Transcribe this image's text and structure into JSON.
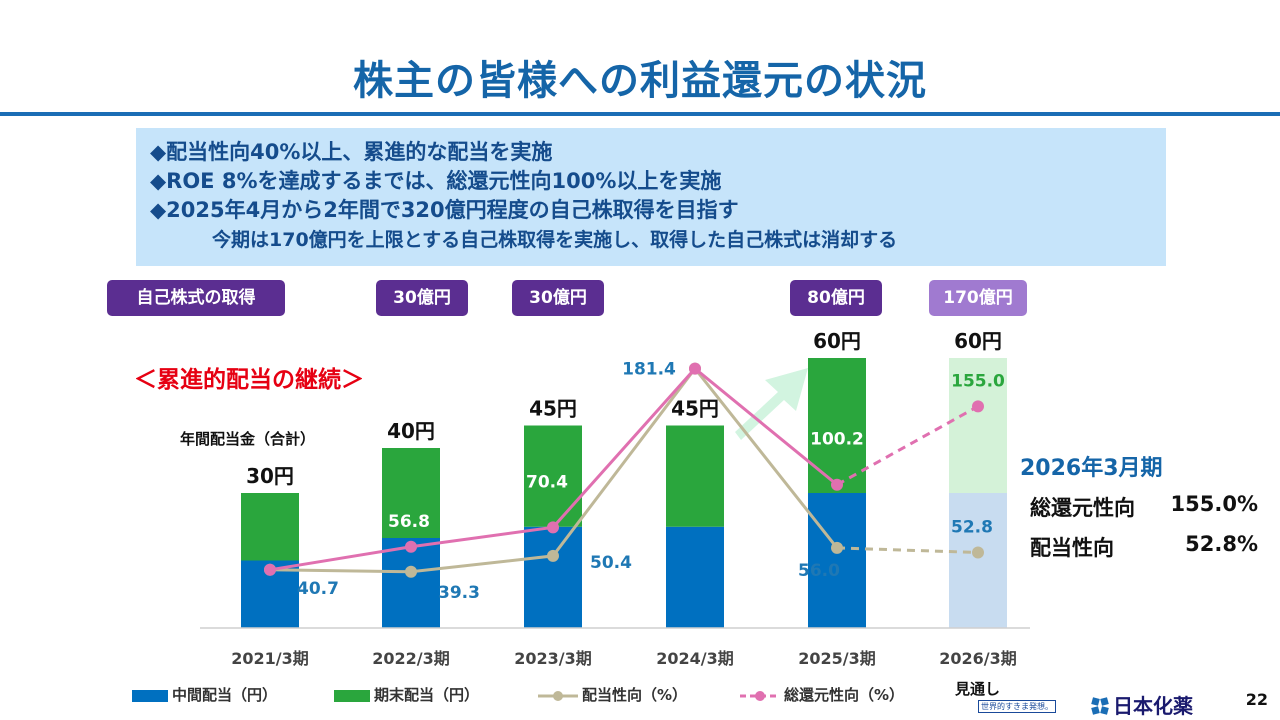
{
  "title": "株主の皆様への利益還元の状況",
  "summary": {
    "line1": "◆配当性向40%以上、累進的な配当を実施",
    "line2": "◆ROE 8%を達成するまでは、総還元性向100%以上を実施",
    "line3": "◆2025年4月から2年間で320億円程度の自己株取得を目指す",
    "line4": "今期は170億円を上限とする自己株取得を実施し、取得した自己株式は消却する"
  },
  "buyback_heading": "自己株式の取得",
  "buybacks": [
    "30億円",
    "30億円",
    "80億円",
    "170億円"
  ],
  "progressive_heading": "＜累進的配当の継続＞",
  "annual_label": "年間配当金（合計）",
  "side_panel": {
    "title": "2026年3月期",
    "row1_label": "総還元性向",
    "row1_value": "155.0%",
    "row2_label": "配当性向",
    "row2_value": "52.8%"
  },
  "footer": {
    "page": "22",
    "company": "日本化薬",
    "slogan": "世界的すきま発想。",
    "forecast_label": "見通し"
  },
  "colors": {
    "interim": "#0070c0",
    "final": "#2aa63d",
    "payout": "#bfb898",
    "total": "#e070b0",
    "interim_forecast": "#c8dcf0",
    "final_forecast": "#d4f2d8",
    "arrow": "#d2f4e0"
  },
  "chart_data": {
    "type": "bar",
    "categories": [
      "2021/3期",
      "2022/3期",
      "2023/3期",
      "2024/3期",
      "2025/3期",
      "2026/3期"
    ],
    "series": [
      {
        "name": "中間配当（円）",
        "kind": "bar",
        "values": [
          15,
          20,
          22.5,
          22.5,
          30,
          30
        ]
      },
      {
        "name": "期末配当（円）",
        "kind": "bar",
        "values": [
          15,
          20,
          22.5,
          22.5,
          30,
          30
        ]
      },
      {
        "name": "配当性向（%）",
        "kind": "line",
        "axis": "right",
        "values": [
          40.7,
          39.3,
          50.4,
          181.4,
          56.0,
          52.8
        ]
      },
      {
        "name": "総還元性向（%）",
        "kind": "line",
        "axis": "right",
        "values": [
          40.7,
          56.8,
          70.4,
          181.4,
          100.2,
          155.0
        ]
      }
    ],
    "totals": [
      30,
      40,
      45,
      45,
      60,
      60
    ],
    "total_labels": [
      "30円",
      "40円",
      "45円",
      "45円",
      "60円",
      "60円"
    ],
    "payout_labels": [
      "40.7",
      "39.3",
      "50.4",
      "",
      "56.0",
      "52.8"
    ],
    "total_return_labels": [
      "",
      "56.8",
      "70.4",
      "181.4",
      "100.2",
      "155.0"
    ],
    "forecast_category": "2026/3期",
    "ylim_left": [
      0,
      70
    ],
    "ylim_right": [
      0,
      210
    ],
    "xlabel": "",
    "ylabel": ""
  }
}
